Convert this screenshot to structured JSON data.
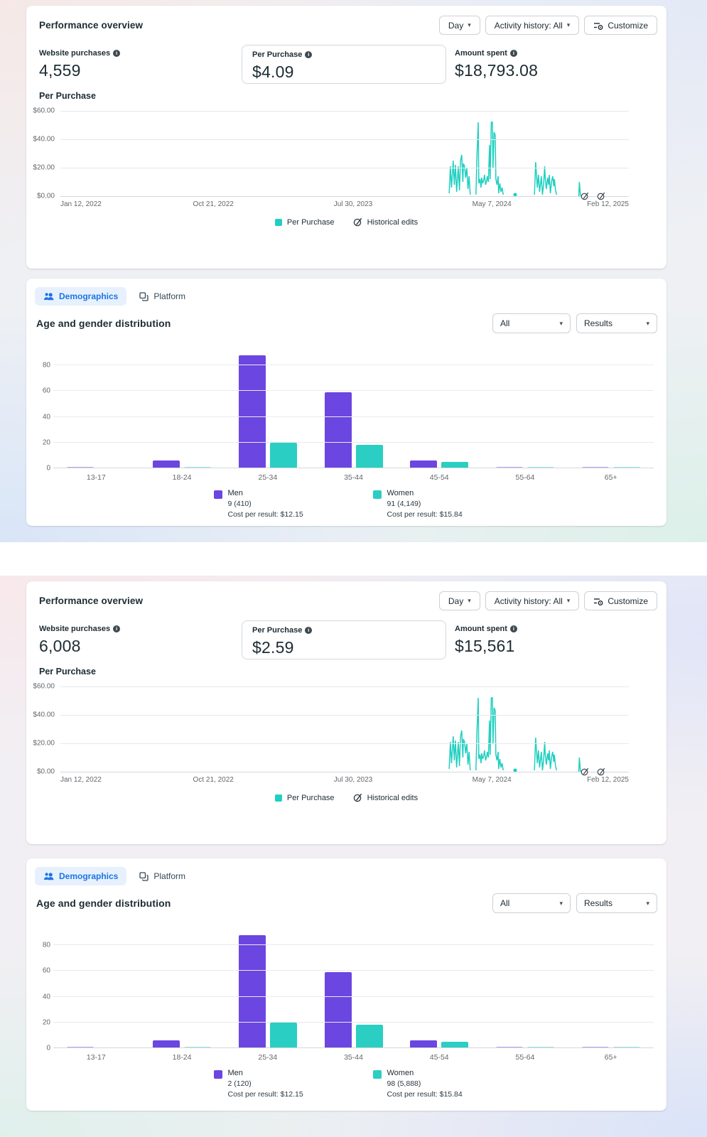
{
  "colors": {
    "teal": "#20cfc0",
    "teal_light": "#9fe4df",
    "purple": "#6b46e1",
    "purple_light": "#b4a6ee",
    "accent_blue": "#1b74e4",
    "tab_background": "#e7f1fd"
  },
  "sections": [
    {
      "performance": {
        "title": "Performance overview",
        "day_label": "Day",
        "activity_label": "Activity history: All",
        "customize_label": "Customize",
        "metrics": [
          {
            "label": "Website purchases",
            "value": "4,559"
          },
          {
            "label": "Per Purchase",
            "value": "$4.09"
          },
          {
            "label": "Amount spent",
            "value": "$18,793.08"
          }
        ],
        "chart_title": "Per Purchase"
      },
      "demographics": {
        "tab_demographics": "Demographics",
        "tab_platform": "Platform",
        "title": "Age and gender distribution",
        "filter_all": "All",
        "filter_results": "Results",
        "legend_men": {
          "label": "Men",
          "value": "9 (410)",
          "cost": "Cost per result: $12.15"
        },
        "legend_women": {
          "label": "Women",
          "value": "91 (4,149)",
          "cost": "Cost per result: $15.84"
        }
      }
    },
    {
      "performance": {
        "title": "Performance overview",
        "day_label": "Day",
        "activity_label": "Activity history: All",
        "customize_label": "Customize",
        "metrics": [
          {
            "label": "Website purchases",
            "value": "6,008"
          },
          {
            "label": "Per Purchase",
            "value": "$2.59"
          },
          {
            "label": "Amount spent",
            "value": "$15,561"
          }
        ],
        "chart_title": "Per Purchase"
      },
      "demographics": {
        "tab_demographics": "Demographics",
        "tab_platform": "Platform",
        "title": "Age and gender distribution",
        "filter_all": "All",
        "filter_results": "Results",
        "legend_men": {
          "label": "Men",
          "value": "2 (120)",
          "cost": "Cost per result: $12.15"
        },
        "legend_women": {
          "label": "Women",
          "value": "98 (5,888)",
          "cost": "Cost per result: $15.84"
        }
      }
    }
  ],
  "chart_data": [
    {
      "type": "line",
      "title": "Per Purchase",
      "ylim": [
        0,
        60
      ],
      "y_ticks": [
        "$60.00",
        "$40.00",
        "$20.00",
        "$0.00"
      ],
      "x_ticks": [
        "Jan 12, 2022",
        "Oct 21, 2022",
        "Jul 30, 2023",
        "May 7, 2024",
        "Feb 12, 2025"
      ],
      "x_tick_positions": [
        0,
        0.269,
        0.515,
        0.759,
        1
      ],
      "grid": true,
      "legend": [
        "Per Purchase",
        "Historical edits"
      ],
      "legend_position": "bottom",
      "series": [
        {
          "name": "Per Purchase",
          "color": "#20cfc0",
          "segments": [
            [
              [
                0.684,
                2
              ],
              [
                0.686,
                21
              ],
              [
                0.688,
                6
              ],
              [
                0.69,
                18
              ],
              [
                0.691,
                25
              ],
              [
                0.693,
                8
              ],
              [
                0.695,
                22
              ],
              [
                0.697,
                3
              ],
              [
                0.699,
                15
              ],
              [
                0.7,
                21
              ],
              [
                0.702,
                4
              ],
              [
                0.704,
                25
              ],
              [
                0.706,
                29
              ],
              [
                0.708,
                10
              ],
              [
                0.709,
                23
              ],
              [
                0.711,
                21
              ],
              [
                0.713,
                13
              ],
              [
                0.715,
                20
              ],
              [
                0.717,
                5
              ],
              [
                0.719,
                14
              ],
              [
                0.721,
                1
              ]
            ],
            [
              [
                0.731,
                1
              ],
              [
                0.733,
                30
              ],
              [
                0.735,
                52
              ],
              [
                0.736,
                9
              ],
              [
                0.738,
                12
              ],
              [
                0.74,
                6
              ],
              [
                0.741,
                13
              ],
              [
                0.743,
                9
              ],
              [
                0.745,
                12
              ],
              [
                0.746,
                15
              ],
              [
                0.748,
                8
              ],
              [
                0.75,
                11
              ],
              [
                0.751,
                14
              ],
              [
                0.753,
                10
              ],
              [
                0.755,
                36
              ],
              [
                0.756,
                12
              ],
              [
                0.758,
                52
              ],
              [
                0.76,
                52
              ],
              [
                0.761,
                20
              ],
              [
                0.763,
                45
              ],
              [
                0.765,
                43
              ],
              [
                0.766,
                12
              ],
              [
                0.768,
                8
              ],
              [
                0.77,
                14
              ],
              [
                0.771,
                2
              ],
              [
                0.773,
                9
              ],
              [
                0.775,
                3
              ],
              [
                0.777,
                6
              ],
              [
                0.779,
                1
              ]
            ],
            [
              [
                0.834,
                1
              ],
              [
                0.836,
                24
              ],
              [
                0.838,
                12
              ],
              [
                0.839,
                6
              ],
              [
                0.841,
                15
              ],
              [
                0.843,
                3
              ],
              [
                0.845,
                10
              ],
              [
                0.846,
                14
              ],
              [
                0.848,
                1
              ],
              [
                0.85,
                8
              ],
              [
                0.852,
                21
              ],
              [
                0.853,
                12
              ],
              [
                0.855,
                5
              ],
              [
                0.857,
                13
              ],
              [
                0.859,
                8
              ],
              [
                0.86,
                15
              ],
              [
                0.862,
                2
              ],
              [
                0.864,
                10
              ],
              [
                0.866,
                14
              ],
              [
                0.868,
                7
              ],
              [
                0.869,
                12
              ],
              [
                0.871,
                4
              ],
              [
                0.873,
                1
              ]
            ],
            [
              [
                0.912,
                0
              ],
              [
                0.913,
                10
              ],
              [
                0.915,
                0
              ]
            ]
          ],
          "dot": {
            "x": 0.8,
            "y": 1
          }
        }
      ],
      "historical_edit_positions": [
        0.922,
        0.951
      ]
    },
    {
      "type": "bar",
      "title": "Age and gender distribution",
      "categories": [
        "13-17",
        "18-24",
        "25-34",
        "35-44",
        "45-54",
        "55-64",
        "65+"
      ],
      "y_ticks": [
        0,
        20,
        40,
        60,
        80
      ],
      "ylim": [
        0,
        88
      ],
      "grid": true,
      "legend_position": "bottom",
      "series": [
        {
          "name": "Men",
          "color": "#6b46e1",
          "light_color": "#b4a6ee",
          "values": [
            1,
            6,
            88,
            59,
            6,
            1,
            1
          ]
        },
        {
          "name": "Women",
          "color": "#2bcec2",
          "light_color": "#9fe4df",
          "values": [
            0.5,
            1,
            20,
            18,
            5,
            1,
            1
          ]
        }
      ]
    },
    {
      "type": "line",
      "title": "Per Purchase",
      "ylim": [
        0,
        60
      ],
      "y_ticks": [
        "$60.00",
        "$40.00",
        "$20.00",
        "$0.00"
      ],
      "x_ticks": [
        "Jan 12, 2022",
        "Oct 21, 2022",
        "Jul 30, 2023",
        "May 7, 2024",
        "Feb 12, 2025"
      ],
      "x_tick_positions": [
        0,
        0.269,
        0.515,
        0.759,
        1
      ],
      "grid": true,
      "legend": [
        "Per Purchase",
        "Historical edits"
      ],
      "legend_position": "bottom",
      "series": [
        {
          "name": "Per Purchase",
          "color": "#20cfc0",
          "segments": [
            [
              [
                0.684,
                2
              ],
              [
                0.686,
                21
              ],
              [
                0.688,
                6
              ],
              [
                0.69,
                18
              ],
              [
                0.691,
                25
              ],
              [
                0.693,
                8
              ],
              [
                0.695,
                22
              ],
              [
                0.697,
                3
              ],
              [
                0.699,
                15
              ],
              [
                0.7,
                21
              ],
              [
                0.702,
                4
              ],
              [
                0.704,
                25
              ],
              [
                0.706,
                29
              ],
              [
                0.708,
                10
              ],
              [
                0.709,
                23
              ],
              [
                0.711,
                21
              ],
              [
                0.713,
                13
              ],
              [
                0.715,
                20
              ],
              [
                0.717,
                5
              ],
              [
                0.719,
                14
              ],
              [
                0.721,
                1
              ]
            ],
            [
              [
                0.731,
                1
              ],
              [
                0.733,
                30
              ],
              [
                0.735,
                52
              ],
              [
                0.736,
                9
              ],
              [
                0.738,
                12
              ],
              [
                0.74,
                6
              ],
              [
                0.741,
                13
              ],
              [
                0.743,
                9
              ],
              [
                0.745,
                12
              ],
              [
                0.746,
                15
              ],
              [
                0.748,
                8
              ],
              [
                0.75,
                11
              ],
              [
                0.751,
                14
              ],
              [
                0.753,
                10
              ],
              [
                0.755,
                36
              ],
              [
                0.756,
                12
              ],
              [
                0.758,
                52
              ],
              [
                0.76,
                52
              ],
              [
                0.761,
                20
              ],
              [
                0.763,
                45
              ],
              [
                0.765,
                43
              ],
              [
                0.766,
                12
              ],
              [
                0.768,
                8
              ],
              [
                0.77,
                14
              ],
              [
                0.771,
                2
              ],
              [
                0.773,
                9
              ],
              [
                0.775,
                3
              ],
              [
                0.777,
                6
              ],
              [
                0.779,
                1
              ]
            ],
            [
              [
                0.834,
                1
              ],
              [
                0.836,
                24
              ],
              [
                0.838,
                12
              ],
              [
                0.839,
                6
              ],
              [
                0.841,
                15
              ],
              [
                0.843,
                3
              ],
              [
                0.845,
                10
              ],
              [
                0.846,
                14
              ],
              [
                0.848,
                1
              ],
              [
                0.85,
                8
              ],
              [
                0.852,
                21
              ],
              [
                0.853,
                12
              ],
              [
                0.855,
                5
              ],
              [
                0.857,
                13
              ],
              [
                0.859,
                8
              ],
              [
                0.86,
                15
              ],
              [
                0.862,
                2
              ],
              [
                0.864,
                10
              ],
              [
                0.866,
                14
              ],
              [
                0.868,
                7
              ],
              [
                0.869,
                12
              ],
              [
                0.871,
                4
              ],
              [
                0.873,
                1
              ]
            ],
            [
              [
                0.912,
                0
              ],
              [
                0.913,
                10
              ],
              [
                0.915,
                0
              ]
            ]
          ],
          "dot": {
            "x": 0.8,
            "y": 1
          }
        }
      ],
      "historical_edit_positions": [
        0.922,
        0.951
      ]
    },
    {
      "type": "bar",
      "title": "Age and gender distribution",
      "categories": [
        "13-17",
        "18-24",
        "25-34",
        "35-44",
        "45-54",
        "55-64",
        "65+"
      ],
      "y_ticks": [
        0,
        20,
        40,
        60,
        80
      ],
      "ylim": [
        0,
        88
      ],
      "grid": true,
      "legend_position": "bottom",
      "series": [
        {
          "name": "Men",
          "color": "#6b46e1",
          "light_color": "#b4a6ee",
          "values": [
            1,
            6,
            88,
            59,
            6,
            1,
            1
          ]
        },
        {
          "name": "Women",
          "color": "#2bcec2",
          "light_color": "#9fe4df",
          "values": [
            0.5,
            1,
            20,
            18,
            5,
            1,
            1
          ]
        }
      ]
    }
  ]
}
